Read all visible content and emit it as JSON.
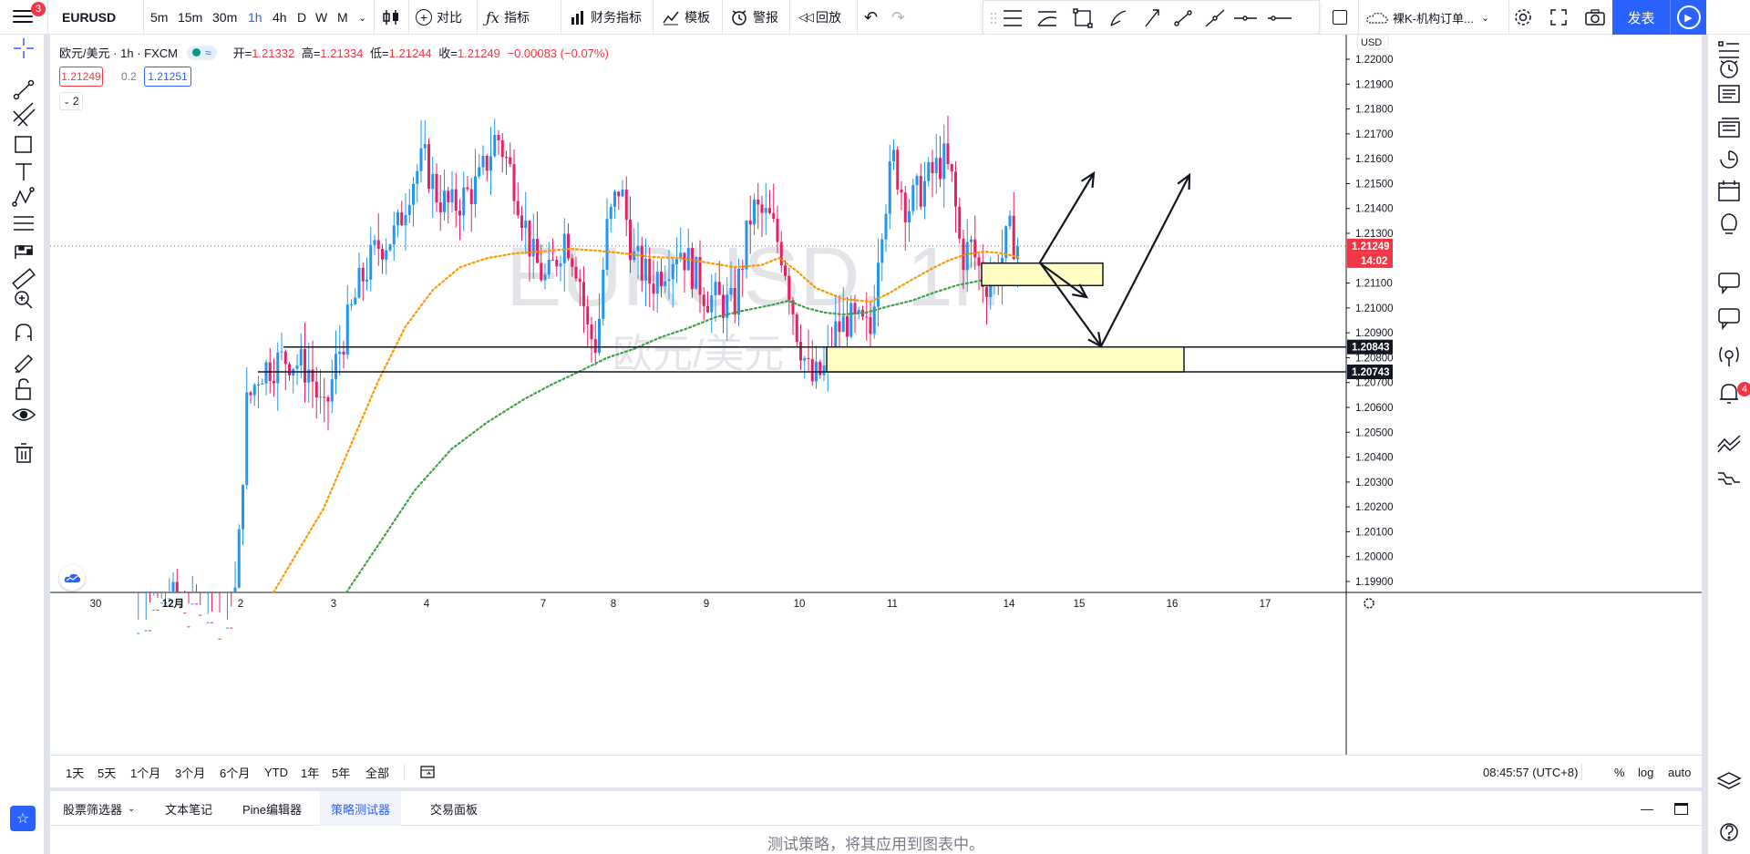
{
  "topbar": {
    "menu_badge": "3",
    "symbol": "EURUSD",
    "intervals": [
      "5m",
      "15m",
      "30m",
      "1h",
      "4h",
      "D",
      "W",
      "M"
    ],
    "active_interval": "1h",
    "compare_label": "对比",
    "indicators_label": "指标",
    "financials_label": "财务指标",
    "templates_label": "模板",
    "alert_label": "警报",
    "replay_label": "回放",
    "layout_name": "裸K-机构订单...",
    "publish_label": "发表"
  },
  "legend": {
    "symbol_desc": "欧元/美元 · 1h · FXCM",
    "open_label": "开=",
    "open": "1.21332",
    "high_label": "高=",
    "high": "1.21334",
    "low_label": "低=",
    "low": "1.21244",
    "close_label": "收=",
    "close": "1.21249",
    "change": "−0.00083 (−0.07%)",
    "bid": "1.21249",
    "spread": "0.2",
    "ask": "1.21251",
    "collapse_count": "2"
  },
  "watermark": {
    "symbol": "EURUSD, 1h",
    "description": "欧元/美元"
  },
  "price_axis": {
    "currency": "USD",
    "ticks": [
      "1.22000",
      "1.21900",
      "1.21800",
      "1.21700",
      "1.21600",
      "1.21500",
      "1.21400",
      "1.21300",
      "1.21100",
      "1.21000",
      "1.20900",
      "1.20800",
      "1.20700",
      "1.20600",
      "1.20500",
      "1.20400",
      "1.20300",
      "1.20200",
      "1.20100",
      "1.20000",
      "1.19900"
    ],
    "last_price": "1.21249",
    "countdown": "14:02",
    "zone_top_label": "1.20843",
    "zone_bottom_label": "1.20743"
  },
  "time_axis": {
    "ticks": [
      "30",
      "12月",
      "2",
      "3",
      "4",
      "7",
      "8",
      "9",
      "10",
      "11",
      "14",
      "15",
      "16",
      "17"
    ]
  },
  "bottombar": {
    "ranges": [
      "1天",
      "5天",
      "1个月",
      "3个月",
      "6个月",
      "YTD",
      "1年",
      "5年",
      "全部"
    ],
    "clock": "08:45:57 (UTC+8)",
    "percent_label": "%",
    "log_label": "log",
    "auto_label": "auto"
  },
  "panel": {
    "tabs": [
      "股票筛选器",
      "文本笔记",
      "Pine编辑器",
      "策略测试器",
      "交易面板"
    ],
    "active_tab": "策略测试器",
    "message": "测试策略，将其应用到图表中。"
  },
  "right_toolbar": {
    "notification_badge": "4"
  },
  "colors": {
    "up": "#26a69a",
    "up_candle": "#2196f3",
    "down_candle": "#e91e63",
    "ma_fast": "#ff9800",
    "ma_slow": "#43a047",
    "zone_fill": "#fffcc4",
    "accent": "#2962ff",
    "last_price": "#f23645"
  },
  "chart_data": {
    "type": "candlestick",
    "symbol": "EURUSD",
    "interval": "1h",
    "ylim": [
      1.1985,
      1.2206
    ],
    "last_price": 1.21249,
    "zones": [
      {
        "top": 1.20843,
        "bottom": 1.20743,
        "time_start": "2.5",
        "time_end": "15.2"
      },
      {
        "top": 1.2118,
        "bottom": 1.2109,
        "time_start": "13.8",
        "time_end": "14.9"
      }
    ],
    "arrows": [
      {
        "from": [
          14.3,
          1.2118
        ],
        "to": [
          14.9,
          1.2155
        ]
      },
      {
        "from": [
          14.3,
          1.2118
        ],
        "to": [
          15.1,
          1.2082
        ]
      },
      {
        "from": [
          15.1,
          1.2082
        ],
        "to": [
          16.1,
          1.2155
        ]
      }
    ]
  }
}
